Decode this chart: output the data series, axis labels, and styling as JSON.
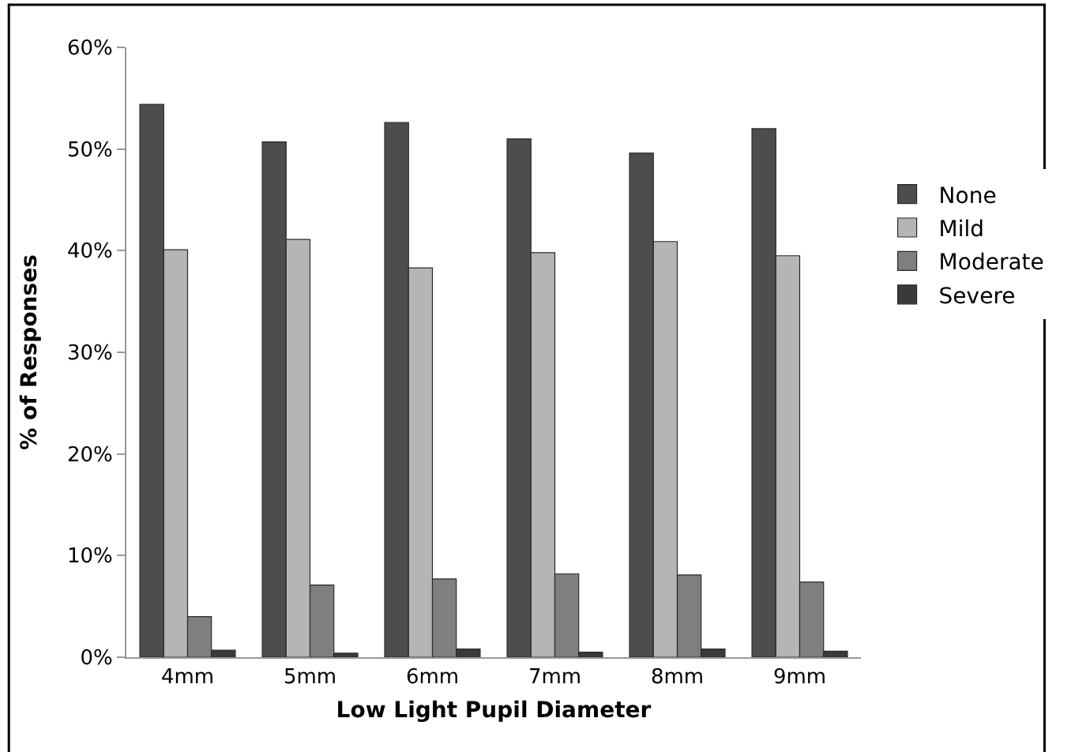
{
  "chart_data": {
    "type": "bar",
    "xlabel": "Low Light Pupil Diameter",
    "ylabel": "% of Responses",
    "categories": [
      "4mm",
      "5mm",
      "6mm",
      "7mm",
      "8mm",
      "9mm"
    ],
    "series": [
      {
        "name": "None",
        "color": "#4d4d4d",
        "values": [
          54.4,
          50.7,
          52.6,
          51.0,
          49.6,
          52.0
        ]
      },
      {
        "name": "Mild",
        "color": "#b5b5b5",
        "values": [
          40.1,
          41.1,
          38.3,
          39.8,
          40.9,
          39.5
        ]
      },
      {
        "name": "Moderate",
        "color": "#7f7f7f",
        "values": [
          4.0,
          7.1,
          7.7,
          8.2,
          8.1,
          7.4
        ]
      },
      {
        "name": "Severe",
        "color": "#3a3a3a",
        "values": [
          0.7,
          0.4,
          0.8,
          0.5,
          0.8,
          0.6
        ]
      }
    ],
    "ylim": [
      0,
      60
    ],
    "yticks": [
      {
        "value": 0,
        "label": "0%"
      },
      {
        "value": 10,
        "label": "10%"
      },
      {
        "value": 20,
        "label": "20%"
      },
      {
        "value": 30,
        "label": "30%"
      },
      {
        "value": 40,
        "label": "40%"
      },
      {
        "value": 50,
        "label": "50%"
      },
      {
        "value": 60,
        "label": "60%"
      }
    ],
    "grid": false,
    "legend": "right"
  }
}
